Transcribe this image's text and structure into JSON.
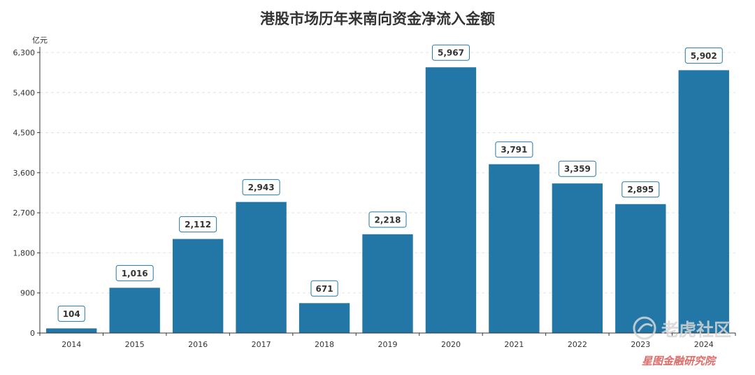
{
  "chart_data": {
    "type": "bar",
    "title": "港股市场历年来南向资金净流入金额",
    "unit_label": "亿元",
    "categories": [
      "2014",
      "2015",
      "2016",
      "2017",
      "2018",
      "2019",
      "2020",
      "2021",
      "2022",
      "2023",
      "2024"
    ],
    "values": [
      104,
      1016,
      2112,
      2943,
      671,
      2218,
      5967,
      3791,
      3359,
      2895,
      5902
    ],
    "value_labels": [
      "104",
      "1,016",
      "2,112",
      "2,943",
      "671",
      "2,218",
      "5,967",
      "3,791",
      "3,359",
      "2,895",
      "5,902"
    ],
    "yticks": [
      "0",
      "900",
      "1,800",
      "2,700",
      "3,600",
      "4,500",
      "5,400",
      "6,300"
    ],
    "ylim": [
      0,
      6300
    ],
    "grid": true,
    "bar_color": "#2277a7",
    "label_border_color": "#2277a7"
  },
  "watermark": {
    "brand": "老虎社区",
    "sub": "星图金融研究院"
  }
}
